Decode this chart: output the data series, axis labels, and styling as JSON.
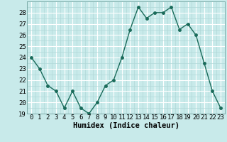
{
  "x": [
    0,
    1,
    2,
    3,
    4,
    5,
    6,
    7,
    8,
    9,
    10,
    11,
    12,
    13,
    14,
    15,
    16,
    17,
    18,
    19,
    20,
    21,
    22,
    23
  ],
  "y": [
    24,
    23,
    21.5,
    21,
    19.5,
    21,
    19.5,
    19,
    20,
    21.5,
    22,
    24,
    26.5,
    28.5,
    27.5,
    28,
    28,
    28.5,
    26.5,
    27,
    26,
    23.5,
    21,
    19.5
  ],
  "line_color": "#1a6b5a",
  "marker_color": "#1a6b5a",
  "bg_color": "#c8eaea",
  "grid_major_color": "#ffffff",
  "grid_minor_color": "#b0d8d8",
  "xlabel": "Humidex (Indice chaleur)",
  "ylim": [
    19,
    29
  ],
  "xlim": [
    -0.5,
    23.5
  ],
  "yticks": [
    19,
    20,
    21,
    22,
    23,
    24,
    25,
    26,
    27,
    28
  ],
  "xticks": [
    0,
    1,
    2,
    3,
    4,
    5,
    6,
    7,
    8,
    9,
    10,
    11,
    12,
    13,
    14,
    15,
    16,
    17,
    18,
    19,
    20,
    21,
    22,
    23
  ],
  "tick_fontsize": 6.5,
  "xlabel_fontsize": 7.5,
  "marker_size": 2.5,
  "line_width": 1.0
}
